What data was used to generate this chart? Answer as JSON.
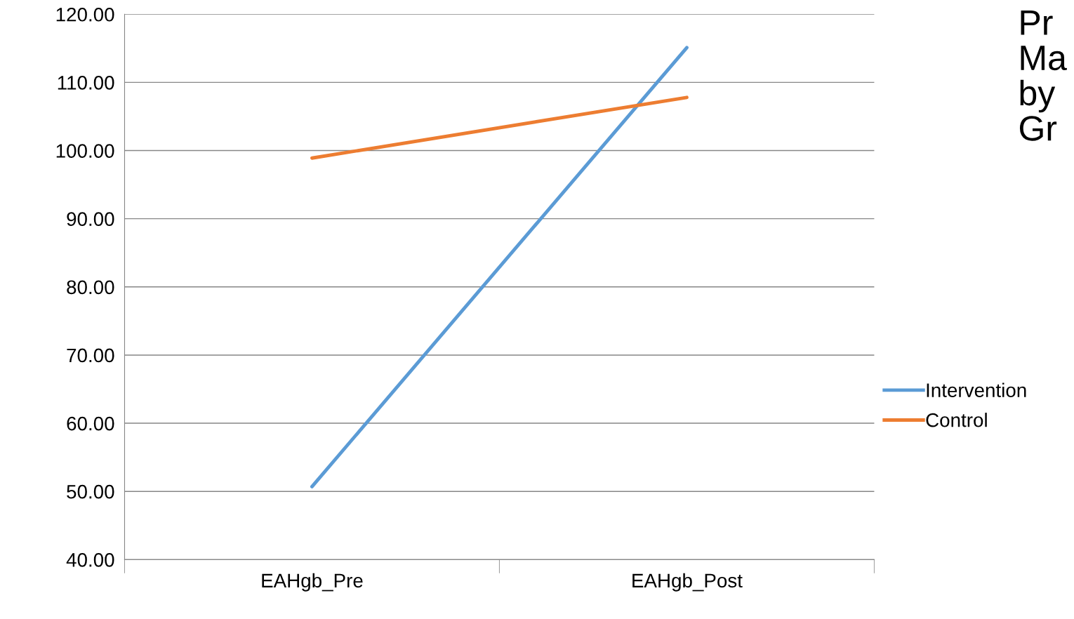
{
  "chart_data": {
    "type": "line",
    "title": "Pr\nMa\nby\nGr",
    "categories": [
      "EAHgb_Pre",
      "EAHgb_Post"
    ],
    "series": [
      {
        "name": "Intervention",
        "color": "#5b9bd5",
        "values": [
          50.7,
          115.1
        ]
      },
      {
        "name": "Control",
        "color": "#ed7d31",
        "values": [
          98.9,
          107.8
        ]
      }
    ],
    "ylim": [
      40,
      120
    ],
    "yticks": [
      {
        "value": 40,
        "label": "40.00"
      },
      {
        "value": 50,
        "label": "50.00"
      },
      {
        "value": 60,
        "label": "60.00"
      },
      {
        "value": 70,
        "label": "70.00"
      },
      {
        "value": 80,
        "label": "80.00"
      },
      {
        "value": 90,
        "label": "90.00"
      },
      {
        "value": 100,
        "label": "100.00"
      },
      {
        "value": 110,
        "label": "110.00"
      },
      {
        "value": 120,
        "label": "120.00"
      }
    ],
    "grid": "y",
    "legend": "right",
    "marker": "none",
    "line_style": "solid"
  }
}
